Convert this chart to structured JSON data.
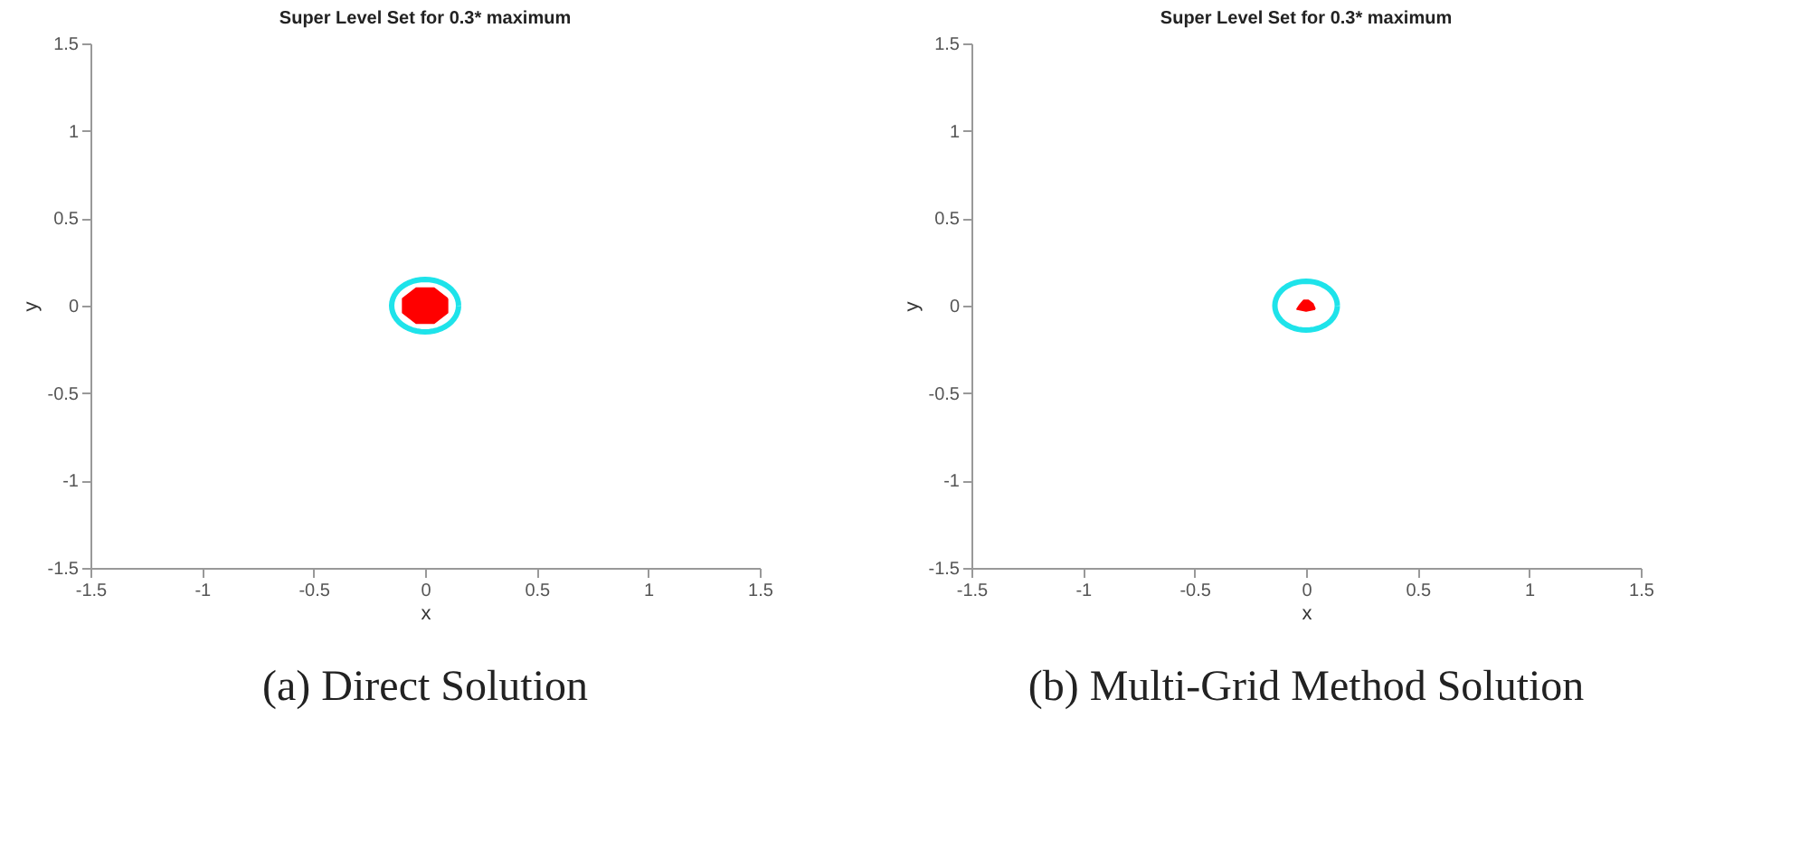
{
  "chart_data": [
    {
      "type": "area",
      "title": "Super Level Set for 0.3* maximum",
      "xlabel": "x",
      "ylabel": "y",
      "annotations": [
        "(a) Direct Solution"
      ],
      "xlim": [
        -1.5,
        1.5
      ],
      "ylim": [
        -1.5,
        1.5
      ],
      "xticks": [
        -1.5,
        -1,
        -0.5,
        0,
        0.5,
        1,
        1.5
      ],
      "yticks": [
        -1.5,
        -1,
        -0.5,
        0,
        0.5,
        1,
        1.5
      ],
      "grid": false,
      "series": [
        {
          "color": "#ff0000",
          "x": [
            0.1,
            0.04,
            -0.04,
            -0.1,
            -0.1,
            -0.04,
            0.04,
            0.1,
            0.1
          ],
          "values": [
            0.04,
            0.1,
            0.1,
            0.04,
            -0.04,
            -0.1,
            -0.1,
            -0.04,
            0.04
          ]
        }
      ]
    },
    {
      "type": "area",
      "title": "Super Level Set for 0.3* maximum",
      "xlabel": "x",
      "ylabel": "y",
      "annotations": [
        "(b) Multi-Grid Method Solution"
      ],
      "xlim": [
        -1.5,
        1.5
      ],
      "ylim": [
        -1.5,
        1.5
      ],
      "xticks": [
        -1.5,
        -1,
        -0.5,
        0,
        0.5,
        1,
        1.5
      ],
      "yticks": [
        -1.5,
        -1,
        -0.5,
        0,
        0.5,
        1,
        1.5
      ],
      "grid": false,
      "series": [
        {
          "color": "#ff0000",
          "x": [
            0.04,
            0.03,
            0.01,
            -0.01,
            -0.03,
            -0.04,
            0.0,
            0.04
          ],
          "values": [
            -0.02,
            0.01,
            0.03,
            0.03,
            0.0,
            -0.02,
            -0.03,
            -0.02
          ]
        }
      ]
    }
  ]
}
